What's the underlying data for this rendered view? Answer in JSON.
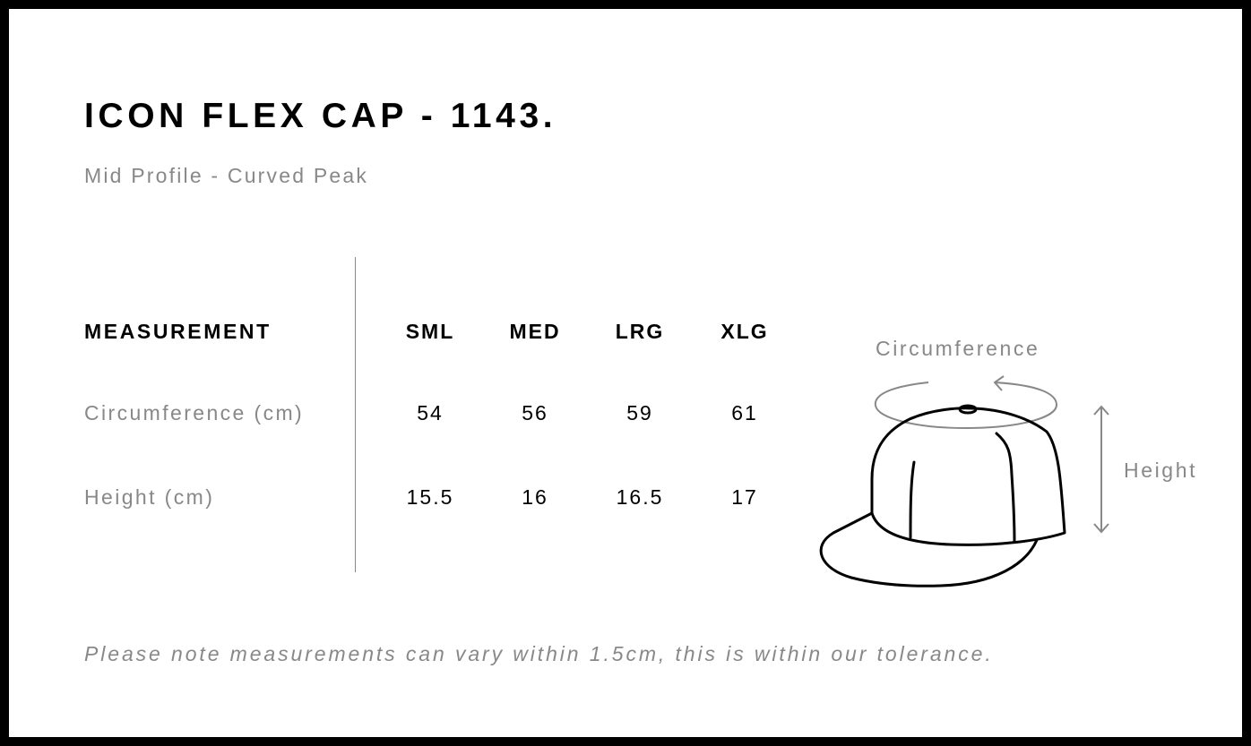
{
  "title": "ICON FLEX CAP - 1143.",
  "subtitle": "Mid Profile - Curved Peak",
  "table": {
    "header": "MEASUREMENT",
    "columns": [
      "SML",
      "MED",
      "LRG",
      "XLG"
    ],
    "rows": [
      {
        "label": "Circumference (cm)",
        "values": [
          "54",
          "56",
          "59",
          "61"
        ]
      },
      {
        "label": "Height (cm)",
        "values": [
          "15.5",
          "16",
          "16.5",
          "17"
        ]
      }
    ]
  },
  "diagram": {
    "circumference_label": "Circumference",
    "height_label": "Height"
  },
  "note": "Please note measurements can vary within 1.5cm, this is within our tolerance."
}
